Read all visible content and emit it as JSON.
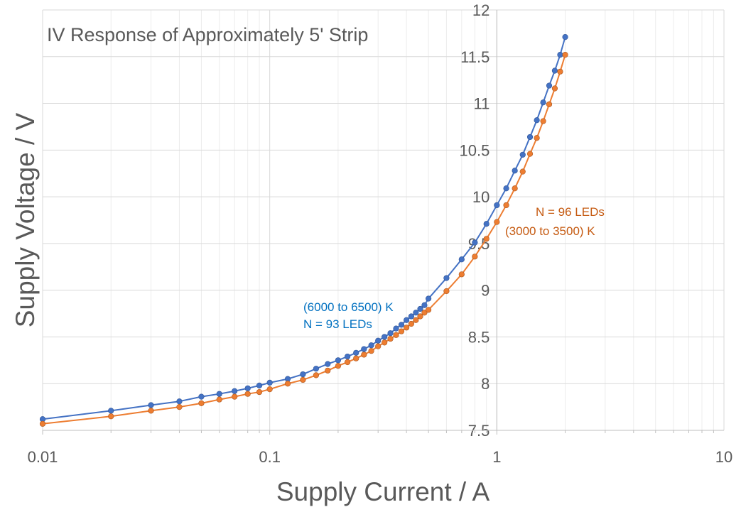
{
  "chart_data": {
    "type": "scatter",
    "title": "IV Response of Approximately 5' Strip",
    "xlabel": "Supply Current / A",
    "ylabel": "Supply Voltage / V",
    "x_scale": "log",
    "xlim": [
      0.01,
      10
    ],
    "ylim": [
      7.5,
      12
    ],
    "x_ticks": [
      {
        "value": 0.01,
        "label": "0.01"
      },
      {
        "value": 0.1,
        "label": "0.1"
      },
      {
        "value": 1,
        "label": "1"
      },
      {
        "value": 10,
        "label": "10"
      }
    ],
    "y_ticks": [
      {
        "value": 7.5,
        "label": "7.5"
      },
      {
        "value": 8,
        "label": "8"
      },
      {
        "value": 8.5,
        "label": "8.5"
      },
      {
        "value": 9,
        "label": "9"
      },
      {
        "value": 9.5,
        "label": "9.5"
      },
      {
        "value": 10,
        "label": "10"
      },
      {
        "value": 10.5,
        "label": "10.5"
      },
      {
        "value": 11,
        "label": "11"
      },
      {
        "value": 11.5,
        "label": "11.5"
      },
      {
        "value": 12,
        "label": "12"
      }
    ],
    "grid": true,
    "minor_x_grid": true,
    "series": [
      {
        "color": "#4472C4",
        "x": [
          0.01,
          0.02,
          0.03,
          0.04,
          0.05,
          0.06,
          0.07,
          0.08,
          0.09,
          0.1,
          0.12,
          0.14,
          0.16,
          0.18,
          0.2,
          0.22,
          0.24,
          0.26,
          0.28,
          0.3,
          0.32,
          0.34,
          0.36,
          0.38,
          0.4,
          0.42,
          0.44,
          0.46,
          0.48,
          0.5,
          0.6,
          0.7,
          0.8,
          0.9,
          1.0,
          1.1,
          1.2,
          1.3,
          1.4,
          1.5,
          1.6,
          1.7,
          1.8,
          1.9,
          2.0
        ],
        "y": [
          7.62,
          7.71,
          7.77,
          7.81,
          7.86,
          7.89,
          7.92,
          7.95,
          7.98,
          8.01,
          8.05,
          8.1,
          8.16,
          8.21,
          8.25,
          8.29,
          8.33,
          8.37,
          8.41,
          8.46,
          8.5,
          8.54,
          8.59,
          8.63,
          8.68,
          8.72,
          8.76,
          8.8,
          8.84,
          8.91,
          9.13,
          9.33,
          9.51,
          9.71,
          9.91,
          10.09,
          10.28,
          10.45,
          10.64,
          10.82,
          11.01,
          11.19,
          11.35,
          11.52,
          11.71
        ]
      },
      {
        "color": "#ED7D31",
        "x": [
          0.01,
          0.02,
          0.03,
          0.04,
          0.05,
          0.06,
          0.07,
          0.08,
          0.09,
          0.1,
          0.12,
          0.14,
          0.16,
          0.18,
          0.2,
          0.22,
          0.24,
          0.26,
          0.28,
          0.3,
          0.32,
          0.34,
          0.36,
          0.38,
          0.4,
          0.42,
          0.44,
          0.46,
          0.48,
          0.5,
          0.6,
          0.7,
          0.8,
          0.9,
          1.0,
          1.1,
          1.2,
          1.3,
          1.4,
          1.5,
          1.6,
          1.7,
          1.8,
          1.9,
          2.0
        ],
        "y": [
          7.57,
          7.65,
          7.71,
          7.75,
          7.79,
          7.83,
          7.86,
          7.89,
          7.91,
          7.94,
          8.0,
          8.04,
          8.09,
          8.14,
          8.19,
          8.23,
          8.27,
          8.31,
          8.35,
          8.4,
          8.44,
          8.48,
          8.52,
          8.56,
          8.6,
          8.64,
          8.68,
          8.72,
          8.76,
          8.79,
          8.99,
          9.17,
          9.36,
          9.55,
          9.73,
          9.91,
          10.09,
          10.27,
          10.46,
          10.63,
          10.81,
          10.99,
          11.16,
          11.34,
          11.52
        ]
      }
    ],
    "annotations": {
      "blue_line1": "(6000 to 6500) K",
      "blue_line2": "N = 93 LEDs",
      "orange_line1": "N = 96 LEDs",
      "orange_line2": "(3000 to 3500) K"
    }
  }
}
